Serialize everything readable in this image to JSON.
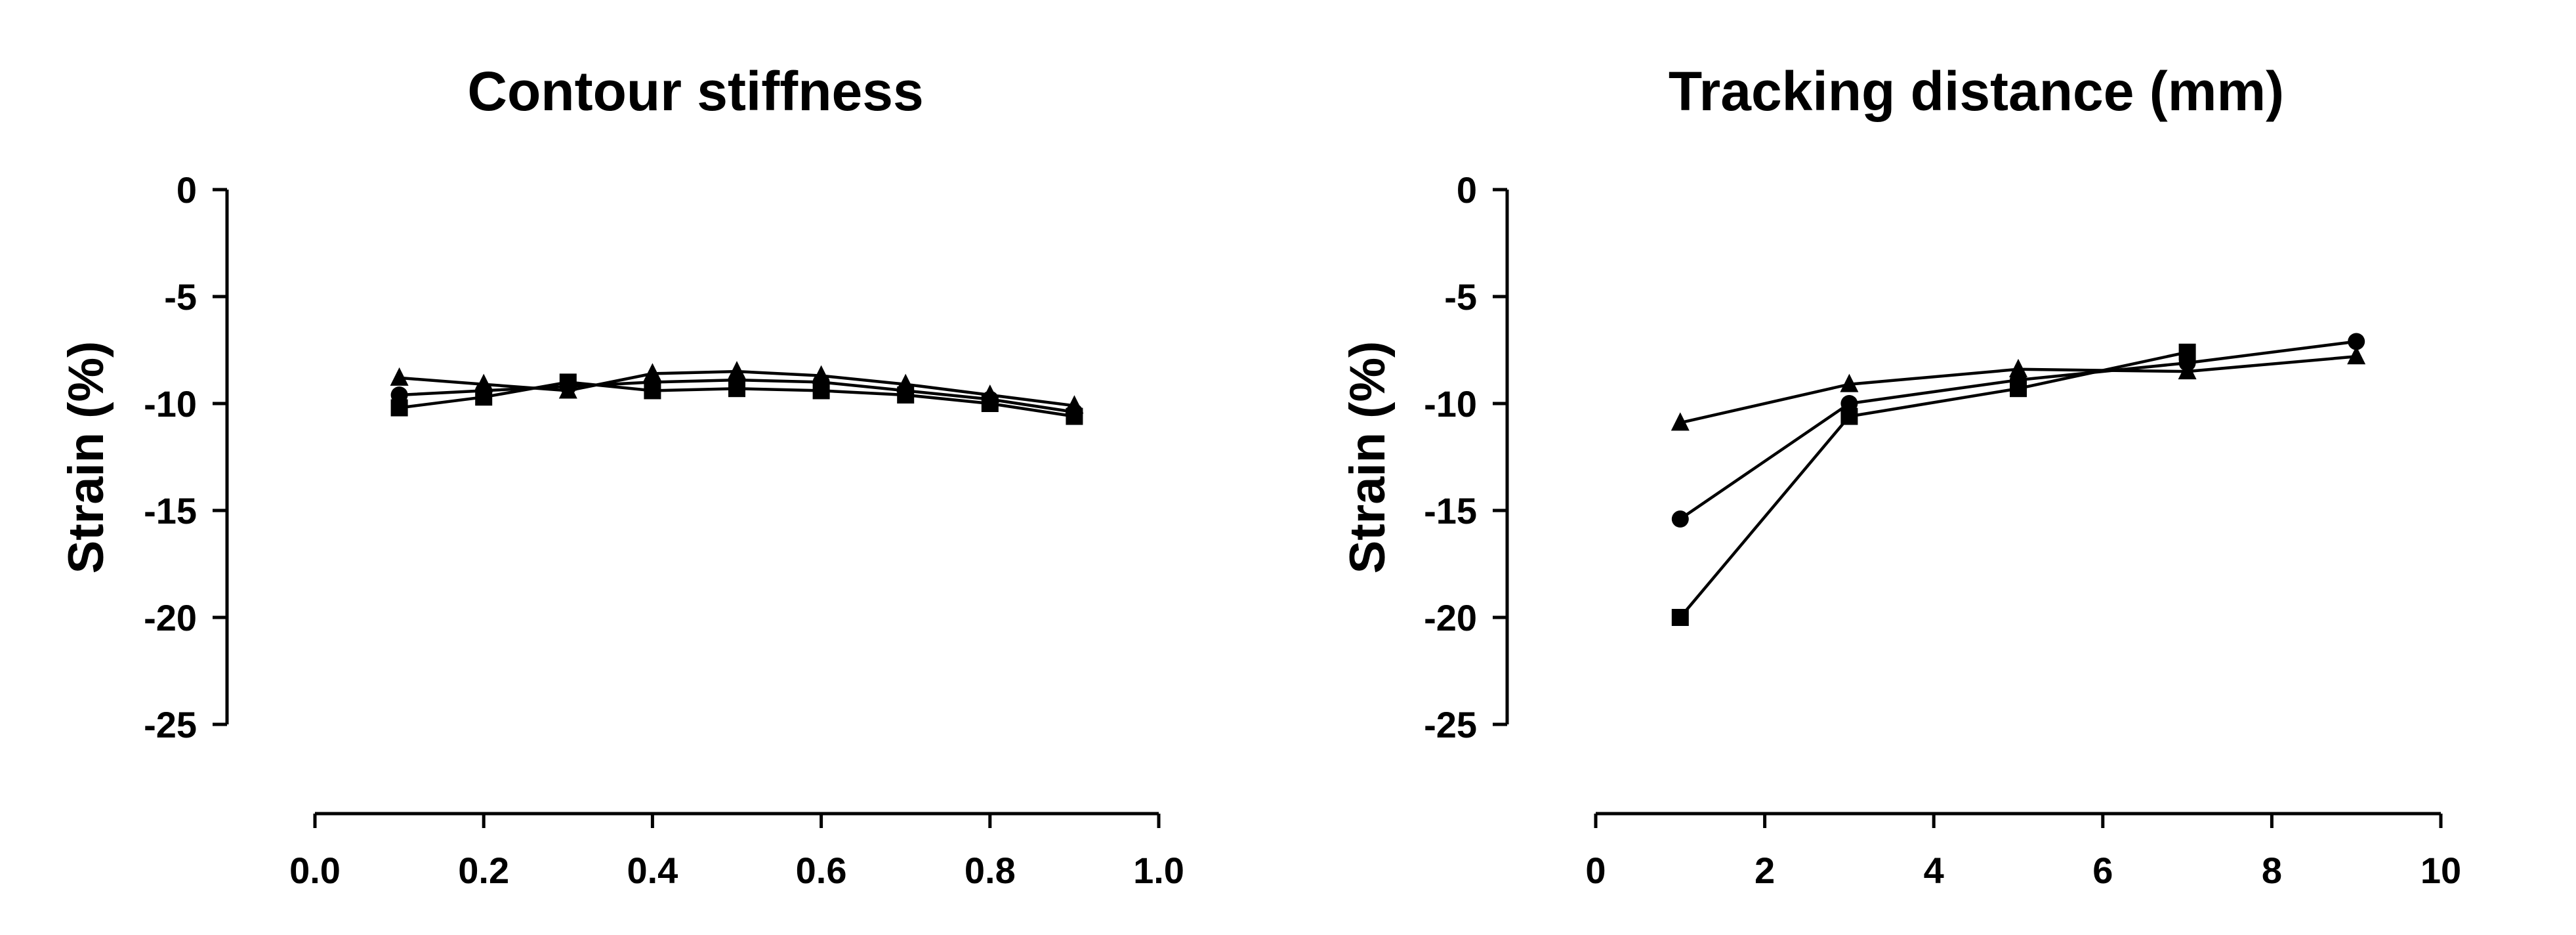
{
  "chart_data": [
    {
      "type": "line",
      "title": "Contour stiffness",
      "xlabel": "",
      "ylabel": "Strain (%)",
      "xlim": [
        0.0,
        1.0
      ],
      "ylim": [
        -25,
        0
      ],
      "xticks": [
        "0.0",
        "0.2",
        "0.4",
        "0.6",
        "0.8",
        "1.0"
      ],
      "yticks": [
        "0",
        "-5",
        "-10",
        "-15",
        "-20",
        "-25"
      ],
      "grid": false,
      "series": [
        {
          "marker": "circle",
          "x": [
            0.1,
            0.2,
            0.3,
            0.4,
            0.5,
            0.6,
            0.7,
            0.8,
            0.9
          ],
          "y": [
            -9.6,
            -9.4,
            -9.2,
            -9.0,
            -8.9,
            -9.0,
            -9.4,
            -9.8,
            -10.4
          ]
        },
        {
          "marker": "square",
          "x": [
            0.1,
            0.2,
            0.3,
            0.4,
            0.5,
            0.6,
            0.7,
            0.8,
            0.9
          ],
          "y": [
            -10.2,
            -9.7,
            -9.0,
            -9.4,
            -9.3,
            -9.4,
            -9.6,
            -10.0,
            -10.6
          ]
        },
        {
          "marker": "triangle",
          "x": [
            0.1,
            0.2,
            0.3,
            0.4,
            0.5,
            0.6,
            0.7,
            0.8,
            0.9
          ],
          "y": [
            -8.8,
            -9.1,
            -9.4,
            -8.6,
            -8.5,
            -8.7,
            -9.1,
            -9.6,
            -10.1
          ]
        }
      ]
    },
    {
      "type": "line",
      "title": "Tracking distance (mm)",
      "xlabel": "",
      "ylabel": "Strain (%)",
      "xlim": [
        0,
        10
      ],
      "ylim": [
        -25,
        0
      ],
      "xticks": [
        "0",
        "2",
        "4",
        "6",
        "8",
        "10"
      ],
      "yticks": [
        "0",
        "-5",
        "-10",
        "-15",
        "-20",
        "-25"
      ],
      "grid": false,
      "series": [
        {
          "marker": "circle",
          "x": [
            1,
            3,
            5,
            7,
            9
          ],
          "y": [
            -15.4,
            -10.0,
            -8.9,
            -8.1,
            -7.1
          ]
        },
        {
          "marker": "square",
          "x": [
            1,
            3,
            5,
            7,
            9
          ],
          "y": [
            -20.0,
            -10.6,
            -9.3,
            -7.6,
            null
          ]
        },
        {
          "marker": "triangle",
          "x": [
            1,
            3,
            5,
            7,
            9
          ],
          "y": [
            -10.9,
            -9.1,
            -8.4,
            -8.5,
            -7.8
          ]
        }
      ]
    }
  ]
}
